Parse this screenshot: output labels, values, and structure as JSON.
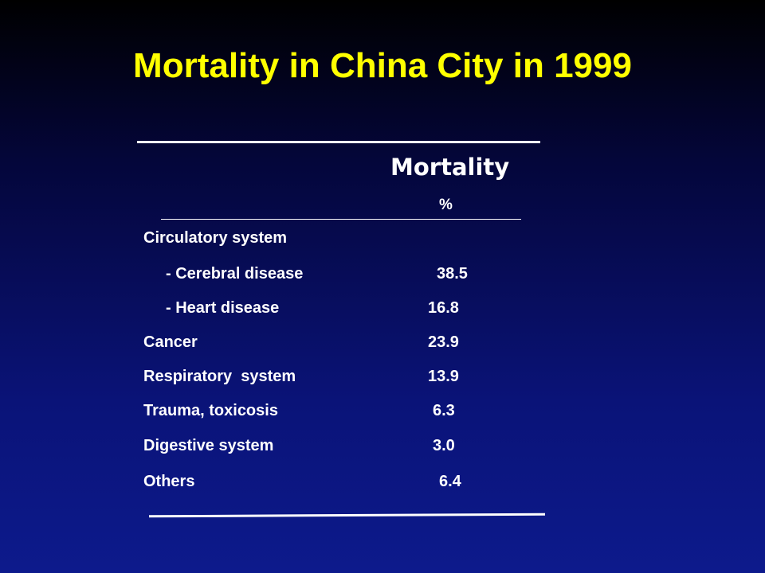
{
  "title": "Mortality in China City in 1999",
  "table": {
    "column_header": "Mortality",
    "column_unit": "%",
    "rows": [
      {
        "label": "Circulatory system",
        "value": ""
      },
      {
        "label": "- Cerebral disease",
        "value": "38.5"
      },
      {
        "label": "- Heart disease",
        "value": "16.8"
      },
      {
        "label": "Cancer",
        "value": "23.9"
      },
      {
        "label": "Respiratory  system",
        "value": "13.9"
      },
      {
        "label": "Trauma, toxicosis",
        "value": "6.3"
      },
      {
        "label": "Digestive system",
        "value": "3.0"
      },
      {
        "label": "Others",
        "value": "6.4"
      }
    ]
  },
  "colors": {
    "title": "#ffff00",
    "text": "#ffffff",
    "background_top": "#000000",
    "background_bottom": "#0d1a8c"
  }
}
